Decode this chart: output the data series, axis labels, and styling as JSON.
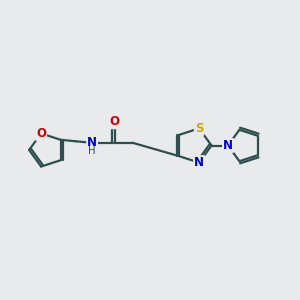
{
  "background_color": "#e8eaeb",
  "bond_color": "#2f4f4f",
  "O_color": "#cc0000",
  "N_color": "#0000cc",
  "S_color": "#ccaa00",
  "lw": 1.6,
  "fs": 8.5,
  "xlim": [
    0,
    10
  ],
  "ylim": [
    2,
    8
  ]
}
